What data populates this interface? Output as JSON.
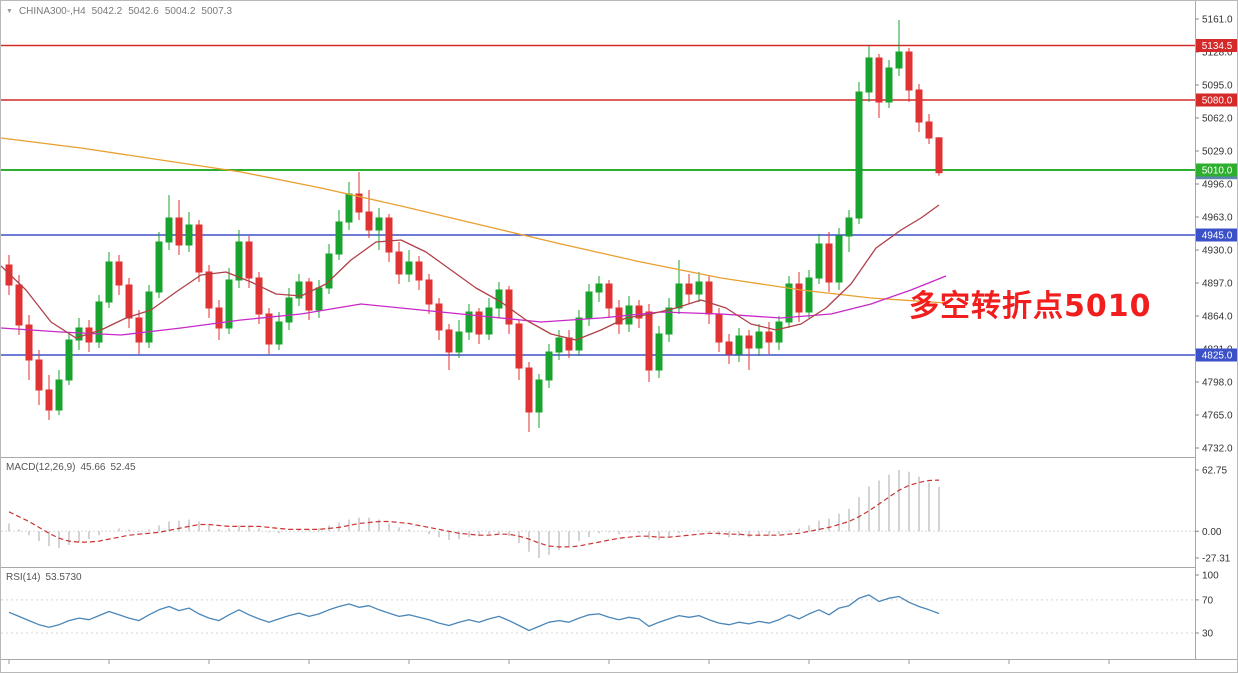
{
  "header": {
    "symbol_period": "CHINA300-,H4",
    "open": "5042.2",
    "high": "5042.6",
    "low": "5004.2",
    "close": "5007.3"
  },
  "macd_header": {
    "name": "MACD(12,26,9)",
    "value_main": "45.66",
    "value_signal": "52.45"
  },
  "rsi_header": {
    "name": "RSI(14)",
    "value": "53.5730"
  },
  "annotation": {
    "text": "多空转折点5010",
    "color": "#f21d1d"
  },
  "chart_data": [
    {
      "type": "candlestick",
      "symbol": "CHINA300-",
      "timeframe": "H4",
      "last_quote": {
        "open": 5042.2,
        "high": 5042.6,
        "low": 5004.2,
        "close": 5007.3
      },
      "y_ticks": [
        5161.0,
        5128.0,
        5095.0,
        5062.0,
        5029.0,
        4996.0,
        4963.0,
        4930.0,
        4897.0,
        4864.0,
        4831.0,
        4798.0,
        4765.0,
        4732.0
      ],
      "ylim": [
        4720,
        5175
      ],
      "up_color": "#18a32e",
      "down_color": "#e03232",
      "levels": [
        {
          "price": 5134.5,
          "label": "5134.5",
          "color": "#d42a2a",
          "width": 1.4
        },
        {
          "price": 5080.0,
          "label": "5080.0",
          "color": "#d42a2a",
          "width": 1.4
        },
        {
          "price": 5010.0,
          "label": "5010.0",
          "color": "#2eae2e",
          "width": 2
        },
        {
          "price": 4945.0,
          "label": "4945.0",
          "color": "#3c50c8",
          "width": 1.4
        },
        {
          "price": 4825.0,
          "label": "4825.0",
          "color": "#3c50c8",
          "width": 1.4
        }
      ],
      "last_price_tag": {
        "price": 5007.3,
        "label": "5007.3",
        "color": "#5f87ad"
      },
      "moving_averages": [
        {
          "name": "ma-slow-line",
          "color": "#e8a02e",
          "points": [
            [
              0,
              5042
            ],
            [
              80,
              5032
            ],
            [
              160,
              5020
            ],
            [
              240,
              5008
            ],
            [
              320,
              4992
            ],
            [
              400,
              4974
            ],
            [
              480,
              4955
            ],
            [
              560,
              4936
            ],
            [
              640,
              4918
            ],
            [
              720,
              4902
            ],
            [
              800,
              4890
            ],
            [
              870,
              4882
            ],
            [
              945,
              4877
            ]
          ]
        },
        {
          "name": "ma-medium-line",
          "color": "#c828c8",
          "points": [
            [
              0,
              4852
            ],
            [
              60,
              4848
            ],
            [
              120,
              4845
            ],
            [
              180,
              4852
            ],
            [
              240,
              4860
            ],
            [
              300,
              4866
            ],
            [
              360,
              4876
            ],
            [
              420,
              4870
            ],
            [
              480,
              4864
            ],
            [
              540,
              4858
            ],
            [
              600,
              4862
            ],
            [
              660,
              4868
            ],
            [
              720,
              4866
            ],
            [
              780,
              4862
            ],
            [
              830,
              4866
            ],
            [
              870,
              4876
            ],
            [
              910,
              4890
            ],
            [
              945,
              4904
            ]
          ]
        },
        {
          "name": "ma-fast-line",
          "color": "#b04048",
          "points": [
            [
              0,
              4914
            ],
            [
              25,
              4890
            ],
            [
              50,
              4858
            ],
            [
              75,
              4842
            ],
            [
              100,
              4850
            ],
            [
              125,
              4862
            ],
            [
              150,
              4870
            ],
            [
              175,
              4888
            ],
            [
              200,
              4905
            ],
            [
              225,
              4908
            ],
            [
              250,
              4898
            ],
            [
              275,
              4886
            ],
            [
              300,
              4884
            ],
            [
              325,
              4896
            ],
            [
              350,
              4920
            ],
            [
              375,
              4938
            ],
            [
              400,
              4940
            ],
            [
              425,
              4928
            ],
            [
              450,
              4910
            ],
            [
              475,
              4892
            ],
            [
              500,
              4878
            ],
            [
              525,
              4860
            ],
            [
              550,
              4846
            ],
            [
              575,
              4840
            ],
            [
              600,
              4850
            ],
            [
              625,
              4862
            ],
            [
              650,
              4866
            ],
            [
              675,
              4872
            ],
            [
              700,
              4880
            ],
            [
              725,
              4872
            ],
            [
              750,
              4856
            ],
            [
              775,
              4850
            ],
            [
              800,
              4856
            ],
            [
              825,
              4872
            ],
            [
              850,
              4896
            ],
            [
              875,
              4932
            ],
            [
              900,
              4950
            ],
            [
              920,
              4962
            ],
            [
              938,
              4975
            ]
          ]
        }
      ],
      "candles": [
        [
          4915,
          4925,
          4885,
          4895
        ],
        [
          4895,
          4905,
          4845,
          4855
        ],
        [
          4855,
          4865,
          4800,
          4820
        ],
        [
          4820,
          4830,
          4775,
          4790
        ],
        [
          4790,
          4805,
          4760,
          4770
        ],
        [
          4770,
          4810,
          4765,
          4800
        ],
        [
          4800,
          4848,
          4795,
          4840
        ],
        [
          4840,
          4862,
          4830,
          4852
        ],
        [
          4852,
          4860,
          4828,
          4838
        ],
        [
          4838,
          4885,
          4832,
          4878
        ],
        [
          4878,
          4928,
          4872,
          4918
        ],
        [
          4918,
          4925,
          4885,
          4895
        ],
        [
          4895,
          4902,
          4852,
          4862
        ],
        [
          4862,
          4870,
          4826,
          4838
        ],
        [
          4838,
          4895,
          4832,
          4888
        ],
        [
          4888,
          4948,
          4882,
          4938
        ],
        [
          4938,
          4985,
          4930,
          4962
        ],
        [
          4962,
          4980,
          4925,
          4935
        ],
        [
          4935,
          4968,
          4928,
          4955
        ],
        [
          4955,
          4960,
          4898,
          4908
        ],
        [
          4908,
          4915,
          4862,
          4872
        ],
        [
          4872,
          4880,
          4840,
          4852
        ],
        [
          4852,
          4912,
          4846,
          4900
        ],
        [
          4900,
          4950,
          4892,
          4938
        ],
        [
          4938,
          4944,
          4892,
          4902
        ],
        [
          4902,
          4908,
          4856,
          4866
        ],
        [
          4866,
          4872,
          4826,
          4836
        ],
        [
          4836,
          4868,
          4830,
          4858
        ],
        [
          4858,
          4892,
          4850,
          4882
        ],
        [
          4882,
          4906,
          4874,
          4898
        ],
        [
          4898,
          4902,
          4860,
          4870
        ],
        [
          4870,
          4900,
          4862,
          4892
        ],
        [
          4892,
          4936,
          4886,
          4926
        ],
        [
          4926,
          4970,
          4920,
          4958
        ],
        [
          4958,
          4998,
          4950,
          4986
        ],
        [
          4986,
          5008,
          4960,
          4968
        ],
        [
          4968,
          4990,
          4942,
          4950
        ],
        [
          4950,
          4972,
          4930,
          4962
        ],
        [
          4962,
          4966,
          4918,
          4928
        ],
        [
          4928,
          4938,
          4896,
          4906
        ],
        [
          4906,
          4930,
          4898,
          4918
        ],
        [
          4918,
          4924,
          4890,
          4900
        ],
        [
          4900,
          4906,
          4866,
          4876
        ],
        [
          4876,
          4882,
          4840,
          4850
        ],
        [
          4850,
          4856,
          4810,
          4828
        ],
        [
          4828,
          4860,
          4822,
          4848
        ],
        [
          4848,
          4876,
          4840,
          4868
        ],
        [
          4868,
          4872,
          4836,
          4846
        ],
        [
          4846,
          4882,
          4840,
          4872
        ],
        [
          4872,
          4898,
          4862,
          4890
        ],
        [
          4890,
          4894,
          4846,
          4856
        ],
        [
          4856,
          4860,
          4800,
          4812
        ],
        [
          4812,
          4818,
          4748,
          4768
        ],
        [
          4768,
          4806,
          4752,
          4800
        ],
        [
          4800,
          4836,
          4792,
          4828
        ],
        [
          4828,
          4850,
          4820,
          4842
        ],
        [
          4842,
          4850,
          4822,
          4830
        ],
        [
          4830,
          4870,
          4824,
          4862
        ],
        [
          4862,
          4896,
          4854,
          4888
        ],
        [
          4888,
          4904,
          4878,
          4896
        ],
        [
          4896,
          4900,
          4862,
          4872
        ],
        [
          4872,
          4880,
          4846,
          4856
        ],
        [
          4856,
          4884,
          4848,
          4874
        ],
        [
          4874,
          4880,
          4852,
          4862
        ],
        [
          4868,
          4876,
          4798,
          4810
        ],
        [
          4810,
          4854,
          4802,
          4846
        ],
        [
          4846,
          4882,
          4838,
          4872
        ],
        [
          4872,
          4920,
          4866,
          4896
        ],
        [
          4896,
          4906,
          4876,
          4886
        ],
        [
          4886,
          4908,
          4878,
          4898
        ],
        [
          4898,
          4904,
          4856,
          4866
        ],
        [
          4866,
          4872,
          4828,
          4838
        ],
        [
          4838,
          4846,
          4816,
          4826
        ],
        [
          4826,
          4852,
          4818,
          4844
        ],
        [
          4844,
          4850,
          4810,
          4832
        ],
        [
          4832,
          4856,
          4824,
          4848
        ],
        [
          4848,
          4858,
          4826,
          4838
        ],
        [
          4838,
          4864,
          4830,
          4858
        ],
        [
          4858,
          4904,
          4852,
          4896
        ],
        [
          4896,
          4908,
          4858,
          4868
        ],
        [
          4868,
          4910,
          4862,
          4902
        ],
        [
          4902,
          4946,
          4896,
          4936
        ],
        [
          4936,
          4948,
          4888,
          4898
        ],
        [
          4898,
          4952,
          4890,
          4944
        ],
        [
          4944,
          4970,
          4928,
          4962
        ],
        [
          4962,
          5098,
          4956,
          5088
        ],
        [
          5088,
          5134,
          5078,
          5122
        ],
        [
          5122,
          5126,
          5062,
          5078
        ],
        [
          5078,
          5120,
          5072,
          5112
        ],
        [
          5112,
          5160,
          5104,
          5128
        ],
        [
          5128,
          5132,
          5078,
          5090
        ],
        [
          5090,
          5096,
          5048,
          5058
        ],
        [
          5058,
          5066,
          5036,
          5042
        ],
        [
          5042.2,
          5042.6,
          5004.2,
          5007.3
        ]
      ]
    },
    {
      "type": "bar",
      "name": "MACD",
      "params": "(12,26,9)",
      "y_ticks": [
        62.75,
        0.0,
        -27.31
      ],
      "ylim": [
        -30,
        66
      ],
      "histogram_color": "#c9c9c9",
      "signal_color": "#cc3333",
      "histogram": [
        8,
        2,
        -4,
        -10,
        -15,
        -17,
        -14,
        -11,
        -8,
        -4,
        0,
        3,
        2,
        -1,
        2,
        6,
        10,
        11,
        12,
        10,
        6,
        2,
        3,
        6,
        6,
        3,
        -1,
        -2,
        0,
        2,
        2,
        3,
        6,
        9,
        12,
        14,
        14,
        12,
        8,
        4,
        2,
        0,
        -3,
        -6,
        -9,
        -8,
        -6,
        -5,
        -3,
        -2,
        -5,
        -12,
        -21,
        -27.31,
        -24,
        -19,
        -15,
        -10,
        -6,
        -2,
        -1,
        -3,
        -1,
        -2,
        -8,
        -9,
        -6,
        -2,
        0,
        1,
        -1,
        -4,
        -6,
        -5,
        -6,
        -5,
        -5,
        -3,
        1,
        3,
        6,
        11,
        13,
        18,
        23,
        35,
        46,
        52,
        58,
        62.75,
        61,
        56,
        50,
        45.66
      ],
      "signal": [
        20,
        15,
        10,
        4,
        -2,
        -7,
        -10,
        -11,
        -11,
        -10,
        -8,
        -6,
        -4,
        -3,
        -2,
        -1,
        1,
        3,
        5,
        7,
        7,
        6,
        5,
        5,
        5,
        5,
        4,
        3,
        2,
        2,
        2,
        2,
        3,
        4,
        6,
        8,
        9,
        10,
        10,
        9,
        8,
        6,
        4,
        2,
        0,
        -2,
        -3,
        -4,
        -4,
        -3,
        -3,
        -5,
        -8,
        -12,
        -15,
        -16,
        -16,
        -15,
        -13,
        -11,
        -9,
        -7,
        -6,
        -5,
        -5,
        -6,
        -6,
        -5,
        -4,
        -3,
        -2,
        -2,
        -3,
        -3,
        -4,
        -4,
        -4,
        -4,
        -3,
        -2,
        0,
        2,
        4,
        7,
        10,
        15,
        21,
        28,
        35,
        42,
        47,
        50,
        52,
        52.45
      ]
    },
    {
      "type": "line",
      "name": "RSI",
      "params": "(14)",
      "y_ticks": [
        100,
        70,
        30
      ],
      "ylim": [
        0,
        100
      ],
      "levels": [
        70,
        30
      ],
      "line_color": "#4a86b8",
      "values": [
        55,
        50,
        45,
        40,
        37,
        40,
        45,
        48,
        46,
        51,
        56,
        52,
        48,
        45,
        52,
        58,
        62,
        57,
        60,
        53,
        48,
        45,
        52,
        58,
        52,
        47,
        43,
        47,
        51,
        54,
        50,
        53,
        58,
        62,
        65,
        61,
        63,
        58,
        54,
        50,
        52,
        49,
        46,
        42,
        39,
        43,
        46,
        43,
        47,
        50,
        45,
        39,
        33,
        38,
        43,
        45,
        43,
        48,
        52,
        53,
        49,
        46,
        49,
        47,
        38,
        43,
        47,
        51,
        49,
        51,
        46,
        42,
        40,
        43,
        41,
        44,
        42,
        46,
        52,
        47,
        53,
        58,
        52,
        60,
        63,
        72,
        76,
        68,
        72,
        74,
        67,
        62,
        58,
        53.57
      ]
    }
  ]
}
